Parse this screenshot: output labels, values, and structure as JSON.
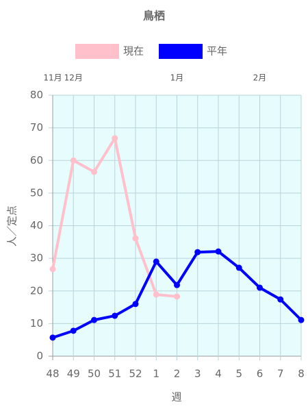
{
  "chart_data": {
    "type": "line",
    "title": "鳥栖",
    "categories": [
      "48",
      "49",
      "50",
      "51",
      "52",
      "1",
      "2",
      "3",
      "4",
      "5",
      "6",
      "7",
      "8"
    ],
    "month_labels": [
      "11月",
      "12月",
      null,
      null,
      null,
      null,
      "1月",
      null,
      null,
      null,
      "2月",
      null,
      null
    ],
    "x_label": "週",
    "y_label": "人／定点",
    "series": [
      {
        "name": "現在",
        "color": "#ffc0cb",
        "values": [
          26.7,
          60,
          56.5,
          66.8,
          36.1,
          18.9,
          18.3,
          null,
          null,
          null,
          null,
          null,
          null
        ]
      },
      {
        "name": "平年",
        "color": "#0000ff",
        "values": [
          5.7,
          7.8,
          11.1,
          12.4,
          16,
          29,
          21.8,
          31.9,
          32.1,
          27.1,
          21,
          17.4,
          11.1
        ]
      }
    ],
    "ylim": [
      0,
      80
    ],
    "yticks": [
      0,
      10,
      20,
      30,
      40,
      50,
      60,
      70,
      80
    ],
    "grid": true,
    "background": "#e6fcfd"
  }
}
